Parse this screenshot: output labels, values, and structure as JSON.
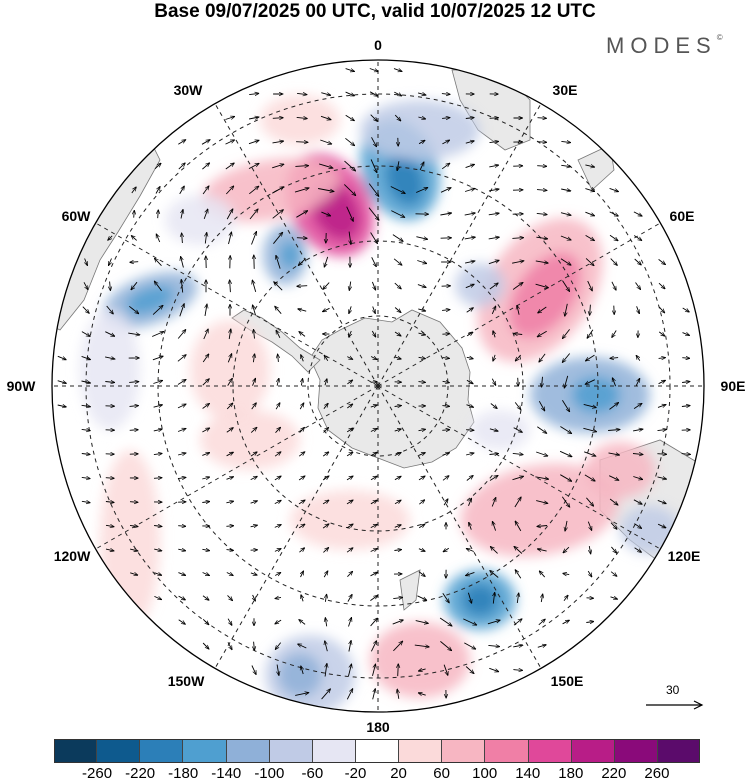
{
  "title": "Base 09/07/2025 00 UTC, valid 10/07/2025 12 UTC",
  "brand": {
    "text": "MODES",
    "mark": "©"
  },
  "map": {
    "projection": "south-polar-stereographic",
    "longitude_labels": [
      {
        "name": "lon-0",
        "text": "0"
      },
      {
        "name": "lon-30e",
        "text": "30E"
      },
      {
        "name": "lon-60e",
        "text": "60E"
      },
      {
        "name": "lon-90e",
        "text": "90E"
      },
      {
        "name": "lon-120e",
        "text": "120E"
      },
      {
        "name": "lon-150e",
        "text": "150E"
      },
      {
        "name": "lon-180",
        "text": "180"
      },
      {
        "name": "lon-150w",
        "text": "150W"
      },
      {
        "name": "lon-120w",
        "text": "120W"
      },
      {
        "name": "lon-90w",
        "text": "90W"
      },
      {
        "name": "lon-60w",
        "text": "60W"
      },
      {
        "name": "lon-30w",
        "text": "30W"
      }
    ],
    "land_color": "#e9e9e9",
    "positive_color": "#f4a3b4",
    "negative_color": "#8fa6d4"
  },
  "wind_reference": {
    "value": "30"
  },
  "colorbar": {
    "colors": [
      "#0b3a5c",
      "#0e5a8e",
      "#2c7fb8",
      "#4f9fd0",
      "#8fb0d8",
      "#c0cbe6",
      "#e6e6f3",
      "#ffffff",
      "#fbdada",
      "#f7b6c2",
      "#f07fa6",
      "#e0489a",
      "#b81d87",
      "#8a0a7a",
      "#5b0b6b"
    ],
    "ticks": [
      "-260",
      "-220",
      "-180",
      "-140",
      "-100",
      "-60",
      "-20",
      "20",
      "60",
      "100",
      "140",
      "180",
      "220",
      "260"
    ]
  }
}
